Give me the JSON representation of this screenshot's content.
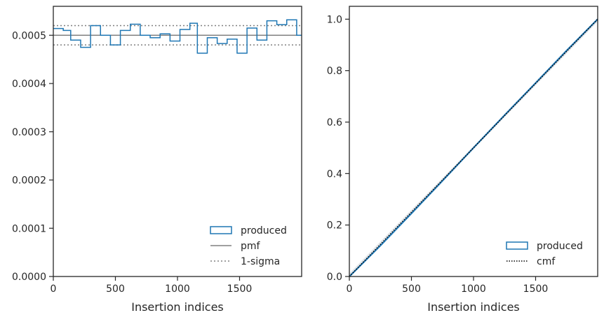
{
  "chart_data": [
    {
      "type": "histogram",
      "xlabel": "Insertion indices",
      "ylabel": "",
      "xlim": [
        0,
        2000
      ],
      "ylim": [
        0,
        0.00056
      ],
      "xticks": [
        0,
        500,
        1000,
        1500
      ],
      "xtick_labels": [
        "0",
        "500",
        "1000",
        "1500"
      ],
      "yticks": [
        0,
        0.0001,
        0.0002,
        0.0003,
        0.0004,
        0.0005
      ],
      "ytick_labels": [
        "0.0000",
        "0.0001",
        "0.0002",
        "0.0003",
        "0.0004",
        "0.0005"
      ],
      "bin_edges": [
        0,
        80,
        140,
        220,
        300,
        380,
        460,
        540,
        620,
        700,
        780,
        860,
        940,
        1020,
        1100,
        1160,
        1240,
        1320,
        1400,
        1480,
        1560,
        1640,
        1720,
        1800,
        1880,
        1960,
        2000
      ],
      "series": [
        {
          "name": "produced",
          "color": "#1f77b4",
          "values": [
            0.000514,
            0.00051,
            0.00049,
            0.000475,
            0.00052,
            0.0005,
            0.00048,
            0.00051,
            0.000523,
            0.0005,
            0.000495,
            0.000503,
            0.000488,
            0.000512,
            0.000525,
            0.000463,
            0.000495,
            0.000483,
            0.000492,
            0.000463,
            0.000515,
            0.00049,
            0.00053,
            0.000522,
            0.000532,
            0.0005
          ]
        }
      ],
      "pmf": {
        "name": "pmf",
        "value": 0.0005,
        "color": "#808080"
      },
      "sigma": {
        "name": "1-sigma",
        "values": [
          0.00048,
          0.00052
        ],
        "color": "#808080"
      },
      "legend": {
        "position": "lower right",
        "entries": [
          "produced",
          "pmf",
          "1-sigma"
        ]
      }
    },
    {
      "type": "line",
      "xlabel": "Insertion indices",
      "ylabel": "",
      "xlim": [
        0,
        2000
      ],
      "ylim": [
        0,
        1.05
      ],
      "xticks": [
        0,
        500,
        1000,
        1500
      ],
      "xtick_labels": [
        "0",
        "500",
        "1000",
        "1500"
      ],
      "yticks": [
        0,
        0.2,
        0.4,
        0.6,
        0.8,
        1.0
      ],
      "ytick_labels": [
        "0.0",
        "0.2",
        "0.4",
        "0.6",
        "0.8",
        "1.0"
      ],
      "series": [
        {
          "name": "produced",
          "color": "#1f77b4",
          "x": [
            0,
            250,
            500,
            750,
            1000,
            1250,
            1500,
            1750,
            2000
          ],
          "y": [
            0,
            0.12,
            0.245,
            0.372,
            0.5,
            0.627,
            0.752,
            0.878,
            1.0
          ]
        },
        {
          "name": "cmf",
          "color": "#000000",
          "x": [
            0,
            2000
          ],
          "y": [
            0,
            1.0
          ]
        }
      ],
      "legend": {
        "position": "lower right",
        "entries": [
          "produced",
          "cmf"
        ]
      }
    }
  ]
}
